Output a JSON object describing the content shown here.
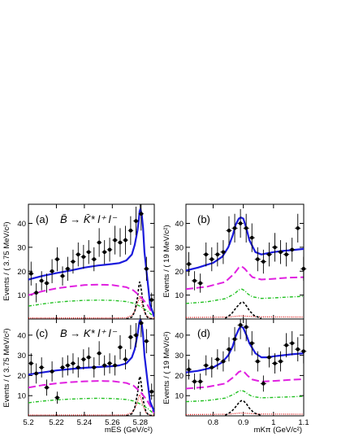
{
  "chart_data": [
    {
      "type": "scatter",
      "panel_label": "(a)",
      "annotation": "B̄ → K̄* l⁺ l⁻",
      "xlabel": "",
      "ylabel": "Events / ( 3.75 MeV/c²)",
      "xlim": [
        5.2,
        5.29
      ],
      "ylim": [
        0,
        48
      ],
      "yticks": [
        "10",
        "20",
        "30",
        "40"
      ],
      "xticks": [],
      "points": {
        "x": [
          5.2019,
          5.2056,
          5.2094,
          5.2131,
          5.2169,
          5.2206,
          5.2244,
          5.2281,
          5.2319,
          5.2356,
          5.2394,
          5.2431,
          5.2469,
          5.2506,
          5.2544,
          5.2581,
          5.2619,
          5.2656,
          5.2694,
          5.2731,
          5.2769,
          5.2806,
          5.2844,
          5.2881
        ],
        "y": [
          19,
          11,
          16,
          15,
          20,
          25,
          18,
          21,
          24,
          27,
          26,
          28,
          25,
          32,
          28,
          29,
          33,
          32,
          33,
          37,
          41,
          44,
          21,
          8
        ],
        "err": [
          5,
          4,
          4,
          4,
          5,
          5,
          4,
          5,
          5,
          5,
          5,
          5,
          5,
          6,
          5,
          5,
          6,
          6,
          6,
          6,
          6,
          7,
          5,
          3
        ]
      },
      "series": [
        {
          "name": "",
          "style": "solid",
          "color": "#1a1adc",
          "x": [
            5.2,
            5.21,
            5.22,
            5.23,
            5.24,
            5.25,
            5.26,
            5.265,
            5.27,
            5.274,
            5.276,
            5.278,
            5.279,
            5.2795,
            5.28,
            5.281,
            5.282,
            5.283,
            5.285,
            5.287,
            5.29
          ],
          "y": [
            16.5,
            18,
            19.2,
            20.3,
            21.5,
            22.4,
            23,
            23.4,
            24.5,
            27,
            31,
            37,
            42,
            45,
            46,
            44,
            38,
            28,
            17,
            6,
            1
          ]
        },
        {
          "name": "",
          "style": "long-dash",
          "color": "#e020e0",
          "x": [
            5.2,
            5.21,
            5.22,
            5.23,
            5.24,
            5.25,
            5.26,
            5.27,
            5.275,
            5.28,
            5.285,
            5.288,
            5.29
          ],
          "y": [
            10,
            11.6,
            12.8,
            13.6,
            14.2,
            14.4,
            14.2,
            13.3,
            12,
            9.5,
            6,
            3,
            1
          ]
        },
        {
          "name": "",
          "style": "dash-dot",
          "color": "#20c020",
          "x": [
            5.2,
            5.21,
            5.22,
            5.23,
            5.24,
            5.25,
            5.26,
            5.27,
            5.275,
            5.28,
            5.285,
            5.288,
            5.29
          ],
          "y": [
            5.4,
            6.3,
            7,
            7.5,
            7.8,
            7.9,
            7.8,
            7.3,
            6.6,
            5.3,
            3.4,
            1.8,
            0.6
          ]
        },
        {
          "name": "",
          "style": "short-dash",
          "color": "#000000",
          "x": [
            5.27,
            5.274,
            5.276,
            5.278,
            5.279,
            5.2795,
            5.28,
            5.281,
            5.282,
            5.284,
            5.286,
            5.29
          ],
          "y": [
            0,
            0.8,
            3,
            9,
            14,
            15.5,
            15,
            11,
            6,
            1.5,
            0.2,
            0
          ]
        },
        {
          "name": "",
          "style": "dotted",
          "color": "#e01010",
          "x": [
            5.2,
            5.26,
            5.27,
            5.274,
            5.276,
            5.278,
            5.279,
            5.2795,
            5.28,
            5.281,
            5.282,
            5.284,
            5.287,
            5.29
          ],
          "y": [
            0.4,
            0.4,
            0.5,
            1.5,
            3.2,
            6.5,
            8.5,
            9.3,
            9,
            7,
            4.5,
            1.5,
            0.4,
            0.3
          ]
        }
      ]
    },
    {
      "type": "scatter",
      "panel_label": "(b)",
      "xlabel": "",
      "ylabel": "Events / ( 19 MeV/c²)",
      "xlim": [
        0.71,
        1.1
      ],
      "ylim": [
        0,
        48
      ],
      "yticks": [
        "10",
        "20",
        "30",
        "40"
      ],
      "xticks": [],
      "points": {
        "x": [
          0.7195,
          0.7385,
          0.7575,
          0.7765,
          0.7955,
          0.8145,
          0.8335,
          0.8525,
          0.8715,
          0.8905,
          0.9095,
          0.9285,
          0.9475,
          0.9665,
          0.9855,
          1.0045,
          1.0235,
          1.0425,
          1.0615,
          1.0805,
          1.0995
        ],
        "y": [
          23,
          16,
          15,
          27,
          25,
          27,
          28,
          37,
          38,
          40,
          38,
          34,
          25,
          24,
          27,
          30,
          28,
          27,
          29,
          38,
          21
        ],
        "err": [
          5,
          4,
          4,
          5,
          5,
          5,
          5,
          6,
          6,
          6,
          6,
          6,
          5,
          5,
          5,
          6,
          5,
          5,
          5,
          6,
          5
        ]
      },
      "series": [
        {
          "name": "",
          "style": "solid",
          "color": "#1a1adc",
          "x": [
            0.71,
            0.75,
            0.8,
            0.83,
            0.85,
            0.865,
            0.875,
            0.885,
            0.892,
            0.9,
            0.91,
            0.92,
            0.94,
            0.96,
            0.98,
            1.0,
            1.03,
            1.06,
            1.1
          ],
          "y": [
            20.3,
            21.5,
            23.5,
            26,
            30,
            35,
            39.5,
            42,
            42.5,
            42,
            38,
            33,
            28,
            27,
            27.5,
            28,
            28.5,
            28.8,
            29.3
          ]
        },
        {
          "name": "",
          "style": "long-dash",
          "color": "#e020e0",
          "x": [
            0.71,
            0.78,
            0.84,
            0.87,
            0.885,
            0.895,
            0.905,
            0.915,
            0.93,
            0.96,
            1.0,
            1.05,
            1.1
          ],
          "y": [
            12.5,
            13.5,
            15.5,
            19,
            21.5,
            22,
            21,
            19.5,
            17.5,
            16.5,
            16.8,
            17.3,
            17.5
          ]
        },
        {
          "name": "",
          "style": "dash-dot",
          "color": "#20c020",
          "x": [
            0.71,
            0.78,
            0.84,
            0.87,
            0.885,
            0.895,
            0.905,
            0.915,
            0.93,
            0.96,
            1.0,
            1.05,
            1.1
          ],
          "y": [
            6.5,
            7.2,
            8.5,
            10.5,
            12.2,
            12.5,
            11.8,
            10.5,
            9.3,
            8.6,
            8.8,
            9.2,
            9.5
          ]
        },
        {
          "name": "",
          "style": "short-dash",
          "color": "#000000",
          "x": [
            0.84,
            0.86,
            0.875,
            0.885,
            0.893,
            0.9,
            0.91,
            0.92,
            0.935,
            0.96
          ],
          "y": [
            0.3,
            2,
            4.5,
            6,
            7,
            7,
            5.5,
            3.5,
            1.5,
            0.2
          ]
        },
        {
          "name": "",
          "style": "dotted",
          "color": "#e01010",
          "x": [
            0.71,
            0.85,
            0.89,
            0.95,
            1.1
          ],
          "y": [
            0.6,
            0.8,
            1.3,
            0.9,
            0.8
          ]
        }
      ]
    },
    {
      "type": "scatter",
      "panel_label": "(c)",
      "annotation": "B → K* l⁺ l⁻",
      "xlabel": "mES (GeV/c²)",
      "ylabel": "Events / ( 3.75 MeV/c²)",
      "xlim": [
        5.2,
        5.29
      ],
      "ylim": [
        0,
        48
      ],
      "yticks": [
        "10",
        "20",
        "30",
        "40"
      ],
      "xticks": [
        "5.2",
        "5.22",
        "5.24",
        "5.26",
        "5.28"
      ],
      "points": {
        "x": [
          5.2019,
          5.2056,
          5.2094,
          5.2131,
          5.2169,
          5.2206,
          5.2244,
          5.2281,
          5.2319,
          5.2356,
          5.2394,
          5.2431,
          5.2469,
          5.2506,
          5.2544,
          5.2581,
          5.2619,
          5.2656,
          5.2694,
          5.2731,
          5.2769,
          5.2806,
          5.2844,
          5.2881
        ],
        "y": [
          26,
          21,
          24,
          14,
          22,
          9,
          24,
          25,
          26,
          24,
          28,
          29,
          24,
          31,
          25,
          26,
          25,
          34,
          28,
          39,
          40,
          46,
          37,
          12
        ],
        "err": [
          5,
          5,
          5,
          4,
          5,
          3,
          5,
          5,
          5,
          5,
          5,
          5,
          5,
          6,
          5,
          5,
          5,
          6,
          5,
          6,
          6,
          7,
          6,
          4
        ]
      },
      "series": [
        {
          "name": "",
          "style": "solid",
          "color": "#1a1adc",
          "x": [
            5.2,
            5.21,
            5.22,
            5.23,
            5.24,
            5.25,
            5.26,
            5.265,
            5.27,
            5.274,
            5.276,
            5.278,
            5.279,
            5.2795,
            5.28,
            5.281,
            5.282,
            5.283,
            5.285,
            5.287,
            5.29
          ],
          "y": [
            20.5,
            21.5,
            22.5,
            23.2,
            23.8,
            24.2,
            24.6,
            25,
            26,
            29,
            33,
            40,
            45,
            47,
            47.5,
            46,
            40,
            30,
            18,
            7,
            2
          ]
        },
        {
          "name": "",
          "style": "long-dash",
          "color": "#e020e0",
          "x": [
            5.2,
            5.21,
            5.22,
            5.23,
            5.24,
            5.25,
            5.26,
            5.27,
            5.275,
            5.28,
            5.285,
            5.288,
            5.29
          ],
          "y": [
            14,
            15.2,
            16.1,
            16.7,
            17.1,
            17.3,
            17.2,
            16.3,
            15,
            12,
            7.5,
            3.8,
            1.2
          ]
        },
        {
          "name": "",
          "style": "dash-dot",
          "color": "#20c020",
          "x": [
            5.2,
            5.21,
            5.22,
            5.23,
            5.24,
            5.25,
            5.26,
            5.27,
            5.275,
            5.28,
            5.285,
            5.288,
            5.29
          ],
          "y": [
            6.5,
            7.3,
            7.9,
            8.3,
            8.6,
            8.7,
            8.6,
            8.1,
            7.4,
            5.9,
            3.8,
            2,
            0.7
          ]
        },
        {
          "name": "",
          "style": "short-dash",
          "color": "#000000",
          "x": [
            5.27,
            5.274,
            5.276,
            5.278,
            5.279,
            5.2795,
            5.28,
            5.281,
            5.282,
            5.284,
            5.286,
            5.29
          ],
          "y": [
            0,
            1,
            4,
            11,
            17,
            19.5,
            19,
            14,
            8,
            2,
            0.3,
            0
          ]
        },
        {
          "name": "",
          "style": "dotted",
          "color": "#e01010",
          "x": [
            5.2,
            5.26,
            5.27,
            5.274,
            5.276,
            5.278,
            5.279,
            5.2795,
            5.28,
            5.281,
            5.282,
            5.284,
            5.287,
            5.29
          ],
          "y": [
            0.4,
            0.4,
            0.5,
            1.6,
            3.4,
            7,
            9.5,
            10.5,
            10,
            7.5,
            5,
            1.6,
            0.4,
            0.3
          ]
        }
      ]
    },
    {
      "type": "scatter",
      "panel_label": "(d)",
      "xlabel": "mKπ (GeV/c²)",
      "ylabel": "Events / ( 19 MeV/c²)",
      "xlim": [
        0.71,
        1.1
      ],
      "ylim": [
        0,
        48
      ],
      "yticks": [
        "10",
        "20",
        "30",
        "40"
      ],
      "xticks": [
        "0.8",
        "0.9",
        "1",
        "1.1"
      ],
      "points": {
        "x": [
          0.7195,
          0.7385,
          0.7575,
          0.7765,
          0.7955,
          0.8145,
          0.8335,
          0.8525,
          0.8715,
          0.8905,
          0.9095,
          0.9285,
          0.9475,
          0.9665,
          0.9855,
          1.0045,
          1.0235,
          1.0425,
          1.0615,
          1.0805,
          1.0995
        ],
        "y": [
          23,
          17,
          17,
          25,
          24,
          28,
          27,
          33,
          38,
          45,
          44,
          36,
          27,
          16,
          29,
          26,
          27,
          35,
          36,
          33,
          32
        ],
        "err": [
          5,
          4,
          4,
          5,
          5,
          5,
          5,
          6,
          6,
          7,
          7,
          6,
          5,
          4,
          5,
          5,
          5,
          6,
          6,
          6,
          6
        ]
      },
      "series": [
        {
          "name": "",
          "style": "solid",
          "color": "#1a1adc",
          "x": [
            0.71,
            0.75,
            0.8,
            0.83,
            0.85,
            0.865,
            0.875,
            0.885,
            0.892,
            0.9,
            0.91,
            0.92,
            0.94,
            0.96,
            0.98,
            1.0,
            1.03,
            1.06,
            1.1
          ],
          "y": [
            21.5,
            22.3,
            24,
            26.5,
            30,
            34.5,
            39.5,
            43,
            44.5,
            43.5,
            40,
            36,
            31,
            29,
            29,
            29.5,
            30,
            30.5,
            31
          ]
        },
        {
          "name": "",
          "style": "long-dash",
          "color": "#e020e0",
          "x": [
            0.71,
            0.78,
            0.84,
            0.87,
            0.885,
            0.895,
            0.905,
            0.915,
            0.93,
            0.96,
            1.0,
            1.05,
            1.1
          ],
          "y": [
            13.5,
            14.3,
            16,
            19.5,
            21.8,
            22.3,
            21.4,
            19.8,
            18,
            17,
            17.3,
            17.8,
            18.2
          ]
        },
        {
          "name": "",
          "style": "dash-dot",
          "color": "#20c020",
          "x": [
            0.71,
            0.78,
            0.84,
            0.87,
            0.885,
            0.895,
            0.905,
            0.915,
            0.93,
            0.96,
            1.0,
            1.05,
            1.1
          ],
          "y": [
            7,
            7.6,
            8.8,
            10.8,
            12.3,
            12.6,
            12,
            10.8,
            9.6,
            8.9,
            9.1,
            9.4,
            9.7
          ]
        },
        {
          "name": "",
          "style": "short-dash",
          "color": "#000000",
          "x": [
            0.84,
            0.86,
            0.875,
            0.885,
            0.893,
            0.9,
            0.91,
            0.92,
            0.935,
            0.96
          ],
          "y": [
            0.3,
            2,
            4.5,
            6.5,
            7.5,
            7.5,
            6,
            3.8,
            1.5,
            0.2
          ]
        },
        {
          "name": "",
          "style": "dotted",
          "color": "#e01010",
          "x": [
            0.71,
            0.85,
            0.89,
            0.95,
            1.1
          ],
          "y": [
            0.6,
            0.8,
            1.4,
            0.9,
            0.8
          ]
        }
      ]
    }
  ]
}
